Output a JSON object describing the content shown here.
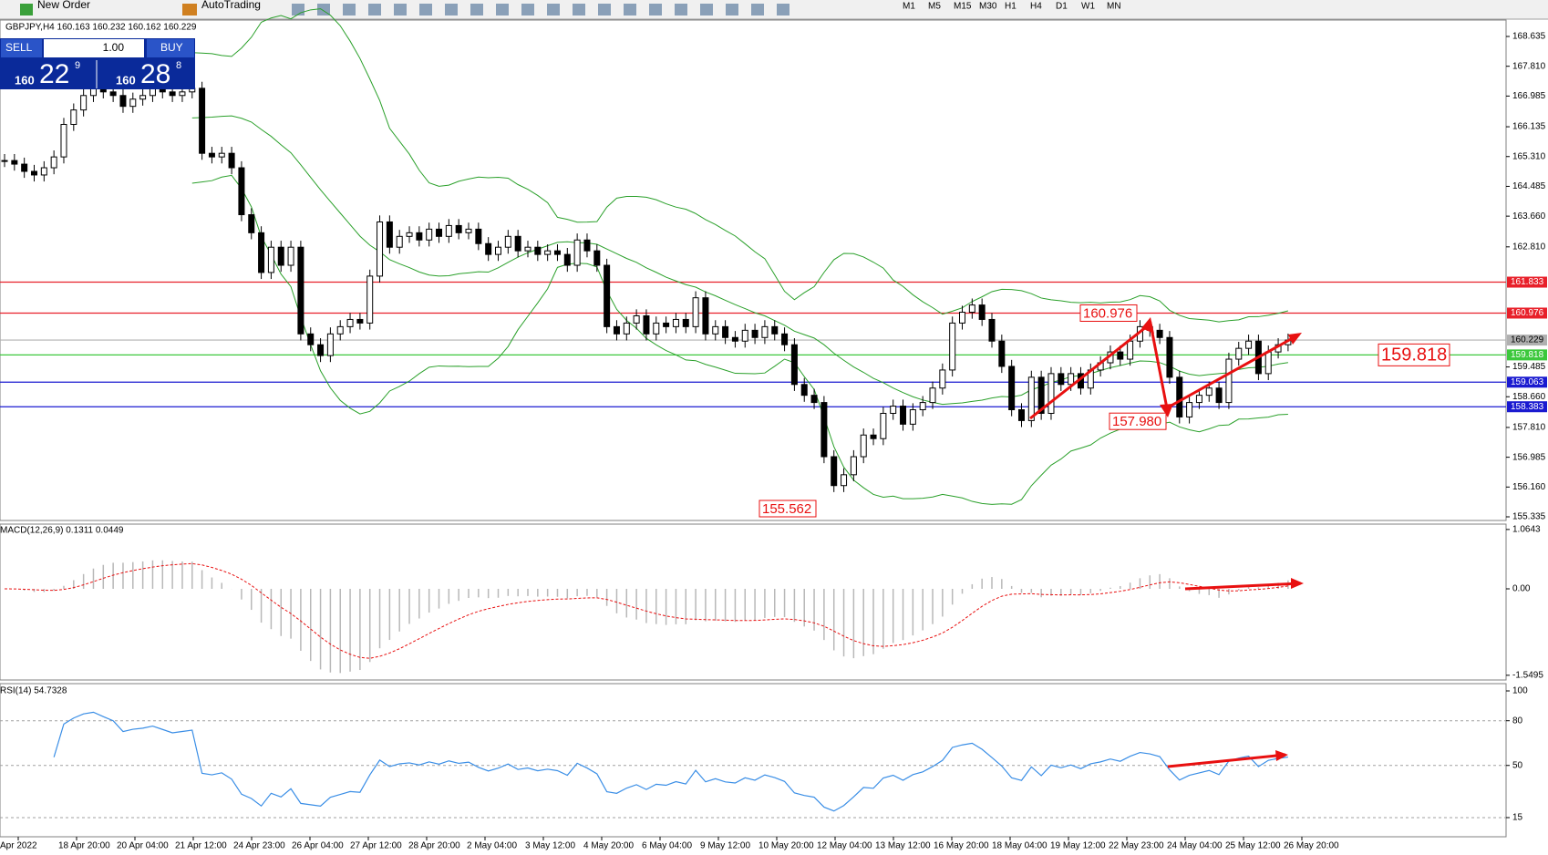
{
  "toolbar": {
    "buttons": [
      "New Order",
      "AutoTrading"
    ],
    "timeframes": [
      "M1",
      "M5",
      "M15",
      "M30",
      "H1",
      "H4",
      "D1",
      "W1",
      "MN"
    ]
  },
  "trade_panel": {
    "sell": "SELL",
    "buy": "BUY",
    "lot": "1.00",
    "bid_big": "160",
    "bid_pips": "22",
    "bid_point": "9",
    "ask_big": "160",
    "ask_pips": "28",
    "ask_point": "8"
  },
  "chart": {
    "header": "GBPJPY,H4 160.163 160.232 160.162 160.229",
    "price_ticks": [
      {
        "value": 168.635,
        "label": "168.635"
      },
      {
        "value": 167.81,
        "label": "167.810"
      },
      {
        "value": 166.985,
        "label": "166.985"
      },
      {
        "value": 166.135,
        "label": "166.135"
      },
      {
        "value": 165.31,
        "label": "165.310"
      },
      {
        "value": 164.485,
        "label": "164.485"
      },
      {
        "value": 163.66,
        "label": "163.660"
      },
      {
        "value": 162.81,
        "label": "162.810"
      },
      {
        "value": 159.485,
        "label": "159.485"
      },
      {
        "value": 158.66,
        "label": "158.660"
      },
      {
        "value": 157.81,
        "label": "157.810"
      },
      {
        "value": 156.985,
        "label": "156.985"
      },
      {
        "value": 156.16,
        "label": "156.160"
      },
      {
        "value": 155.335,
        "label": "155.335"
      }
    ],
    "levels": [
      {
        "value": 161.833,
        "color": "#e8202a"
      },
      {
        "value": 160.976,
        "color": "#e8202a"
      },
      {
        "value": 160.229,
        "color": "#b0b0b0"
      },
      {
        "value": 159.818,
        "color": "#3cc83c"
      },
      {
        "value": 159.063,
        "color": "#1a1ad0"
      },
      {
        "value": 158.383,
        "color": "#1a1ad0"
      }
    ],
    "annotations": [
      {
        "value": 160.976,
        "label": "160.976"
      },
      {
        "value": 157.98,
        "label": "157.980"
      },
      {
        "value": 155.562,
        "label": "155.562"
      },
      {
        "value": 159.818,
        "label": "159.818"
      }
    ],
    "closes": [
      165.2,
      165.1,
      164.9,
      164.8,
      165.0,
      165.3,
      166.2,
      166.6,
      167.0,
      167.2,
      167.1,
      167.0,
      166.7,
      166.9,
      167.0,
      167.2,
      167.1,
      167.0,
      167.1,
      167.2,
      165.4,
      165.3,
      165.4,
      165.0,
      163.7,
      163.2,
      162.1,
      162.8,
      162.3,
      162.8,
      160.4,
      160.1,
      159.8,
      160.4,
      160.6,
      160.8,
      160.7,
      162.0,
      163.5,
      162.8,
      163.1,
      163.2,
      163.0,
      163.3,
      163.1,
      163.4,
      163.2,
      163.3,
      162.9,
      162.6,
      162.8,
      163.1,
      162.7,
      162.8,
      162.6,
      162.7,
      162.6,
      162.3,
      163.0,
      162.7,
      162.3,
      160.6,
      160.4,
      160.7,
      160.9,
      160.4,
      160.7,
      160.6,
      160.8,
      160.6,
      161.4,
      160.4,
      160.6,
      160.3,
      160.2,
      160.5,
      160.3,
      160.6,
      160.4,
      160.1,
      159.0,
      158.7,
      158.5,
      157.0,
      156.2,
      156.5,
      157.0,
      157.6,
      157.5,
      158.2,
      158.4,
      157.9,
      158.3,
      158.5,
      158.9,
      159.4,
      160.7,
      161.0,
      161.2,
      160.8,
      160.2,
      159.5,
      158.3,
      158.0,
      159.2,
      158.2,
      159.3,
      159.0,
      159.3,
      158.9,
      159.4,
      159.6,
      159.9,
      159.7,
      160.2,
      160.6,
      160.5,
      160.3,
      159.2,
      158.1,
      158.5,
      158.7,
      158.9,
      158.5,
      159.7,
      160.0,
      160.2,
      159.3,
      159.9,
      160.1,
      160.229
    ],
    "time_labels": [
      "Apr 2022",
      "18 Apr 20:00",
      "20 Apr 04:00",
      "21 Apr 12:00",
      "24 Apr 23:00",
      "26 Apr 04:00",
      "27 Apr 12:00",
      "28 Apr 20:00",
      "2 May 04:00",
      "3 May 12:00",
      "4 May 20:00",
      "6 May 04:00",
      "9 May 12:00",
      "10 May 20:00",
      "12 May 04:00",
      "13 May 12:00",
      "16 May 20:00",
      "18 May 04:00",
      "19 May 12:00",
      "22 May 23:00",
      "24 May 04:00",
      "25 May 12:00",
      "26 May 20:00"
    ]
  },
  "macd": {
    "header": "MACD(12,26,9) 0.1311 0.0449",
    "ticks": [
      1.0643,
      {
        "value": 0,
        "label": "0.00"
      },
      -1.5495
    ]
  },
  "rsi": {
    "header": "RSI(14) 54.7328",
    "ticks": [
      100,
      80,
      50,
      15
    ]
  }
}
